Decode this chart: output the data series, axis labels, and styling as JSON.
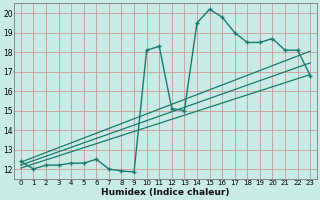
{
  "xlabel": "Humidex (Indice chaleur)",
  "bg_color": "#c8ebe6",
  "line_color": "#1a7a6e",
  "grid_color": "#cc9999",
  "xlim": [
    -0.5,
    23.5
  ],
  "ylim": [
    11.5,
    20.5
  ],
  "xticks": [
    0,
    1,
    2,
    3,
    4,
    5,
    6,
    7,
    8,
    9,
    10,
    11,
    12,
    13,
    14,
    15,
    16,
    17,
    18,
    19,
    20,
    21,
    22,
    23
  ],
  "yticks": [
    12,
    13,
    14,
    15,
    16,
    17,
    18,
    19,
    20
  ],
  "curve_x": [
    0,
    1,
    2,
    3,
    4,
    5,
    6,
    7,
    8,
    9,
    10,
    11,
    12,
    13,
    14,
    15,
    16,
    17,
    18,
    19,
    20,
    21,
    22,
    23
  ],
  "curve_y": [
    12.4,
    12.0,
    12.2,
    12.2,
    12.3,
    12.3,
    12.5,
    12.0,
    11.9,
    11.85,
    18.1,
    18.3,
    15.1,
    15.0,
    19.5,
    20.2,
    19.8,
    19.0,
    18.5,
    18.5,
    18.7,
    18.1,
    18.1,
    16.8
  ],
  "line1_x": [
    0,
    23
  ],
  "line1_y": [
    12.35,
    18.05
  ],
  "line2_x": [
    0,
    23
  ],
  "line2_y": [
    12.05,
    16.85
  ],
  "line3_x": [
    0,
    23
  ],
  "line3_y": [
    12.2,
    17.45
  ]
}
